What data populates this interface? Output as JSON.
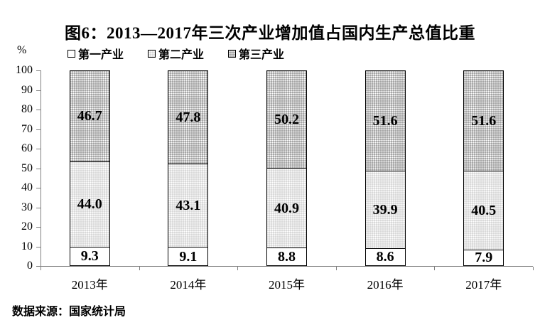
{
  "chart_data": {
    "type": "bar",
    "stacked": true,
    "title": "图6：2013—2017年三次产业增加值占国内生产总值比重",
    "categories": [
      "2013年",
      "2014年",
      "2015年",
      "2016年",
      "2017年"
    ],
    "series": [
      {
        "name": "第一产业",
        "values": [
          9.3,
          9.1,
          8.8,
          8.6,
          7.9
        ]
      },
      {
        "name": "第二产业",
        "values": [
          44.0,
          43.1,
          40.9,
          39.9,
          40.5
        ]
      },
      {
        "name": "第三产业",
        "values": [
          46.7,
          47.8,
          50.2,
          51.6,
          51.6
        ]
      }
    ],
    "xlabel": "",
    "ylabel": "%",
    "ylim": [
      0,
      100
    ],
    "yticks": [
      0,
      10,
      20,
      30,
      40,
      50,
      60,
      70,
      80,
      90,
      100
    ],
    "value_label_decimals": 1,
    "legend_position": "top-left",
    "grid": false,
    "source": "数据来源：国家统计局"
  },
  "colors": {
    "axis": "#808080",
    "bar_border": "#000000",
    "series_fills": [
      "#ffffff",
      "#d9d9d9",
      "#a6a6a6"
    ],
    "series_patterns": [
      "none",
      "white-dots",
      "white-dots"
    ],
    "text": "#000000",
    "background": "#ffffff"
  }
}
